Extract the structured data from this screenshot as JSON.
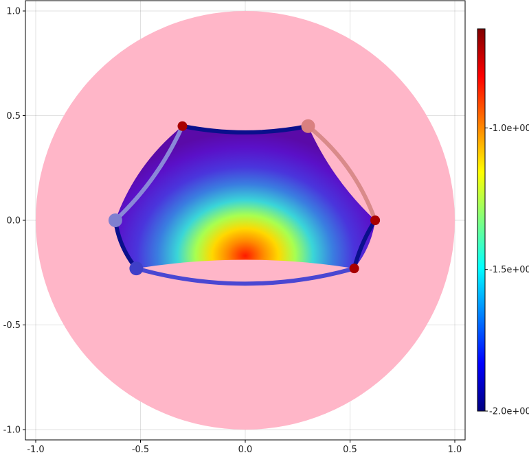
{
  "chart_data": {
    "type": "heatmap",
    "title": "",
    "xlabel": "",
    "ylabel": "",
    "xlim": [
      -1.05,
      1.05
    ],
    "ylim": [
      -1.05,
      1.05
    ],
    "grid": true,
    "x_ticks": [
      -1.0,
      -0.5,
      0.0,
      0.5,
      1.0
    ],
    "y_ticks": [
      -1.0,
      -0.5,
      0.0,
      0.5,
      1.0
    ],
    "x_tick_labels": [
      "-1.0",
      "-0.5",
      "0.0",
      "0.5",
      "1.0"
    ],
    "y_tick_labels": [
      "-1.0",
      "-0.5",
      "0.0",
      "0.5",
      "1.0"
    ],
    "disk": {
      "center": [
        0,
        0
      ],
      "radius": 1.0,
      "color": "#ffb6c8"
    },
    "heat_peak": [
      0.0,
      -0.17
    ],
    "polygon": {
      "vertices": [
        [
          0.3,
          0.45
        ],
        [
          0.62,
          0.0
        ],
        [
          0.52,
          -0.23
        ],
        [
          -0.52,
          -0.23
        ],
        [
          -0.62,
          0.0
        ],
        [
          -0.3,
          0.45
        ]
      ],
      "edge_bulge": [
        -0.1,
        0.14,
        -0.08,
        0.14,
        0.14,
        -0.1
      ],
      "colormap": "jet"
    },
    "edges": [
      {
        "from": [
          -0.3,
          0.45
        ],
        "to": [
          0.3,
          0.45
        ],
        "color": "#0a0f8c"
      },
      {
        "from": [
          0.3,
          0.45
        ],
        "to": [
          0.62,
          0.0
        ],
        "color": "#d98a8a"
      },
      {
        "from": [
          0.62,
          0.0
        ],
        "to": [
          0.52,
          -0.23
        ],
        "color": "#0a0f8c"
      },
      {
        "from": [
          0.52,
          -0.23
        ],
        "to": [
          -0.52,
          -0.23
        ],
        "color": "#4a47d2"
      },
      {
        "from": [
          -0.52,
          -0.23
        ],
        "to": [
          -0.62,
          0.0
        ],
        "color": "#0a0f8c"
      },
      {
        "from": [
          -0.62,
          0.0
        ],
        "to": [
          -0.3,
          0.45
        ],
        "color": "#8a88d8"
      }
    ],
    "points": [
      {
        "x": -0.3,
        "y": 0.45,
        "color": "#a80000",
        "size": "small"
      },
      {
        "x": 0.3,
        "y": 0.45,
        "color": "#d98080",
        "size": "large"
      },
      {
        "x": 0.62,
        "y": 0.0,
        "color": "#a80000",
        "size": "small"
      },
      {
        "x": 0.52,
        "y": -0.23,
        "color": "#a80000",
        "size": "small"
      },
      {
        "x": -0.52,
        "y": -0.23,
        "color": "#3f3fc8",
        "size": "large"
      },
      {
        "x": -0.62,
        "y": 0.0,
        "color": "#7f7fd0",
        "size": "large"
      }
    ],
    "colorbar": {
      "min": -2.0,
      "max": -0.65,
      "ticks": [
        -2.0,
        -1.5,
        -1.0
      ],
      "tick_labels": [
        "-2.0e+00",
        "-1.5e+00",
        "-1.0e+00"
      ],
      "colormap": "jet"
    }
  }
}
